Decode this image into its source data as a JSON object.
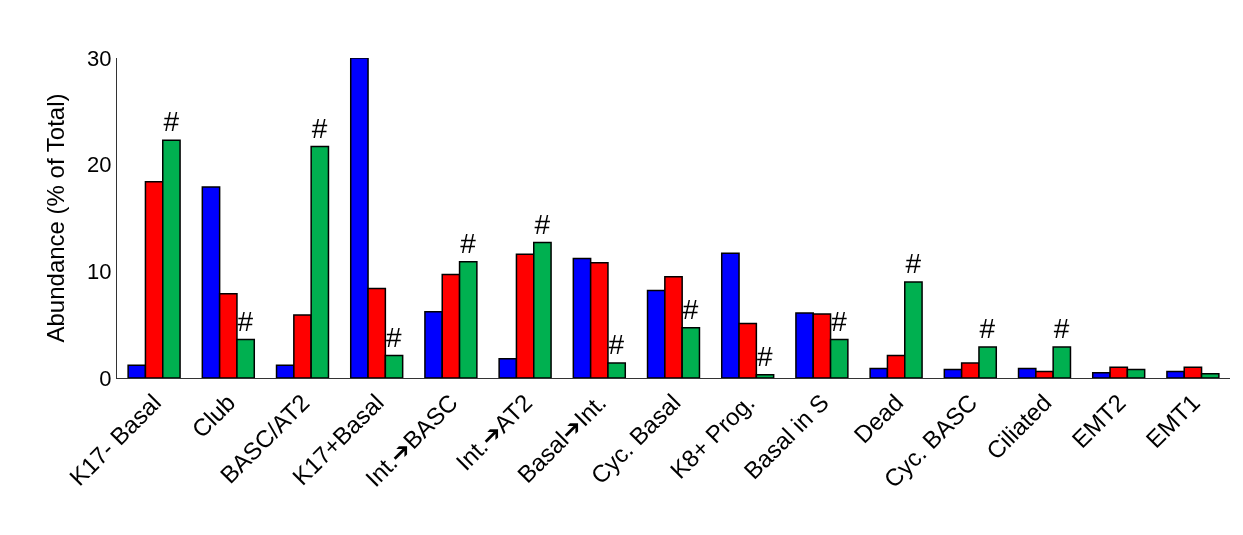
{
  "chart_data": {
    "type": "bar",
    "ylabel": "Abundance (% of Total)",
    "categories": [
      "K17- Basal",
      "Club",
      "BASC/AT2",
      "K17+Basal",
      "Int.➔BASC",
      "Int.➔AT2",
      "Basal➔Int.",
      "Cyc. Basal",
      "K8+ Prog.",
      "Basal in S",
      "Dead",
      "Cyc. BASC",
      "Ciliated",
      "EMT2",
      "EMT1"
    ],
    "series": [
      {
        "color": "#0000ff",
        "values": [
          1.2,
          17.9,
          1.2,
          30,
          6.2,
          1.8,
          11.2,
          8.2,
          11.7,
          6.1,
          0.9,
          0.8,
          0.9,
          0.5,
          0.6
        ]
      },
      {
        "color": "#ff0000",
        "values": [
          18.4,
          7.9,
          5.9,
          8.4,
          9.7,
          11.6,
          10.8,
          9.5,
          5.1,
          6.0,
          2.1,
          1.4,
          0.6,
          1.0,
          1.0
        ]
      },
      {
        "color": "#00b050",
        "values": [
          22.3,
          3.6,
          21.7,
          2.1,
          10.9,
          12.7,
          1.4,
          4.7,
          0.3,
          3.6,
          9.0,
          2.9,
          2.9,
          0.8,
          0.4
        ],
        "value_labels": [
          "#",
          "#",
          "#",
          "#",
          "#",
          "#",
          "#",
          "#",
          "#",
          "#",
          "#",
          "#",
          "#",
          null,
          null
        ]
      }
    ],
    "ylim": [
      0,
      30
    ],
    "yticks": [
      0,
      10,
      20,
      30
    ]
  }
}
